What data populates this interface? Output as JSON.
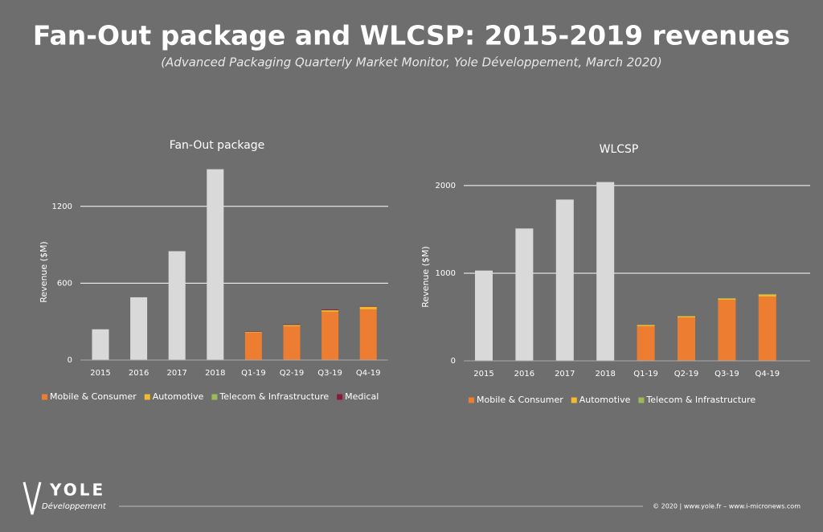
{
  "title": "Fan-Out package and WLCSP: 2015-2019 revenues",
  "subtitle": "(Advanced Packaging Quarterly Market Monitor, Yole Développement, March 2020)",
  "logo": {
    "name": "YOLE",
    "tagline": "Développement"
  },
  "footer": "© 2020 | www.yole.fr – www.i-micronews.com",
  "chart_data": [
    {
      "type": "bar",
      "stacked": true,
      "title": "Fan-Out package",
      "ylabel": "Revenue ($M)",
      "categories": [
        "2015",
        "2016",
        "2017",
        "2018",
        "Q1-19",
        "Q2-19",
        "Q3-19",
        "Q4-19"
      ],
      "annual": {
        "color": "#d9d9d9",
        "values": [
          240,
          490,
          850,
          1490,
          null,
          null,
          null,
          null
        ]
      },
      "series": [
        {
          "name": "Mobile & Consumer",
          "color": "#ed7d31",
          "values": [
            null,
            null,
            null,
            null,
            214,
            264,
            377,
            396
          ]
        },
        {
          "name": "Automotive",
          "color": "#f5b82e",
          "values": [
            null,
            null,
            null,
            null,
            5,
            8,
            10,
            18
          ]
        },
        {
          "name": "Telecom & Infrastructure",
          "color": "#9bbb59",
          "values": [
            null,
            null,
            null,
            null,
            2,
            3,
            3,
            3
          ]
        },
        {
          "name": "Medical",
          "color": "#8b1a3a",
          "values": [
            null,
            null,
            null,
            null,
            3,
            4,
            6,
            4
          ]
        }
      ],
      "ylim": [
        0,
        1500
      ],
      "yticks": [
        0,
        600,
        1200
      ],
      "grid": true
    },
    {
      "type": "bar",
      "stacked": true,
      "title": "WLCSP",
      "ylabel": "Revenue ($M)",
      "categories": [
        "2015",
        "2016",
        "2017",
        "2018",
        "Q1-19",
        "Q2-19",
        "Q3-19",
        "Q4-19"
      ],
      "annual": {
        "color": "#d9d9d9",
        "values": [
          1030,
          1510,
          1840,
          2040,
          null,
          null,
          null,
          null
        ]
      },
      "series": [
        {
          "name": "Mobile & Consumer",
          "color": "#ed7d31",
          "values": [
            null,
            null,
            null,
            null,
            395,
            495,
            697,
            734
          ]
        },
        {
          "name": "Automotive",
          "color": "#f5b82e",
          "values": [
            null,
            null,
            null,
            null,
            12,
            12,
            12,
            20
          ]
        },
        {
          "name": "Telecom & Infrastructure",
          "color": "#9bbb59",
          "values": [
            null,
            null,
            null,
            null,
            5,
            5,
            6,
            8
          ]
        }
      ],
      "ylim": [
        0,
        2100
      ],
      "yticks": [
        0,
        1000,
        2000
      ],
      "grid": true
    }
  ]
}
